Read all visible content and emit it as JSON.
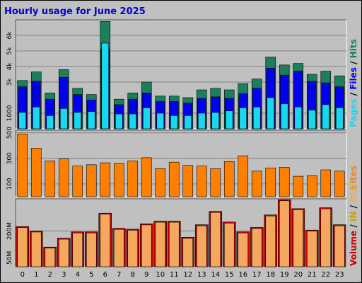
{
  "title": "Hourly usage for June 2025",
  "colors": {
    "background": "#c0c0c0",
    "hits": "#1a7f5a",
    "files": "#0000ee",
    "pages": "#18d8f0",
    "sites": "#ff8000",
    "volume": "#cc0000",
    "in_out": "#f3a85e",
    "in_label": "#c8a000"
  },
  "legend": {
    "top": {
      "pages": "Pages",
      "sep1": " / ",
      "files": "Files",
      "sep2": " / ",
      "hits": "Hits"
    },
    "middle": {
      "sites": "Sites"
    },
    "bottom": {
      "volume": "Volume",
      "sep1": " / ",
      "in": "IN",
      "sep2": " / ",
      "out": "OUT"
    }
  },
  "chart_data": [
    {
      "type": "bar",
      "name": "Hits / Files / Pages",
      "categories": [
        "0",
        "1",
        "2",
        "3",
        "4",
        "5",
        "6",
        "7",
        "8",
        "9",
        "10",
        "11",
        "12",
        "13",
        "14",
        "15",
        "16",
        "17",
        "18",
        "19",
        "20",
        "21",
        "22",
        "23"
      ],
      "series": [
        {
          "name": "Hits",
          "values": [
            3100,
            3650,
            2300,
            3800,
            2600,
            2200,
            6900,
            1900,
            2300,
            3000,
            2100,
            2100,
            2000,
            2500,
            2600,
            2500,
            2900,
            3200,
            4600,
            4100,
            4200,
            3500,
            3700,
            3400
          ]
        },
        {
          "name": "Files",
          "values": [
            2700,
            3050,
            1900,
            3300,
            2200,
            1850,
            5100,
            1550,
            1900,
            2300,
            1750,
            1750,
            1650,
            1950,
            2050,
            1950,
            2250,
            2600,
            3900,
            3450,
            3700,
            3050,
            2950,
            2700
          ]
        },
        {
          "name": "Pages",
          "values": [
            1050,
            1400,
            850,
            1300,
            1050,
            1100,
            5500,
            950,
            950,
            1350,
            1000,
            850,
            850,
            1000,
            1050,
            1150,
            1350,
            1400,
            2000,
            1600,
            1400,
            1200,
            1550,
            1350
          ]
        }
      ],
      "yticks": [
        "6k",
        "5k",
        "4k",
        "3k",
        "1000"
      ],
      "ylim": [
        0,
        7000
      ]
    },
    {
      "type": "bar",
      "name": "Sites",
      "categories": [
        "0",
        "1",
        "2",
        "3",
        "4",
        "5",
        "6",
        "7",
        "8",
        "9",
        "10",
        "11",
        "12",
        "13",
        "14",
        "15",
        "16",
        "17",
        "18",
        "19",
        "20",
        "21",
        "22",
        "23"
      ],
      "series": [
        {
          "name": "Sites",
          "values": [
            490,
            380,
            280,
            295,
            240,
            250,
            265,
            260,
            280,
            305,
            220,
            270,
            245,
            240,
            220,
            275,
            320,
            200,
            225,
            230,
            160,
            165,
            210,
            200
          ]
        }
      ],
      "yticks": [
        "500",
        "300",
        "100"
      ],
      "ylim": [
        0,
        520
      ]
    },
    {
      "type": "bar",
      "name": "Volume",
      "categories": [
        "0",
        "1",
        "2",
        "3",
        "4",
        "5",
        "6",
        "7",
        "8",
        "9",
        "10",
        "11",
        "12",
        "13",
        "14",
        "15",
        "16",
        "17",
        "18",
        "19",
        "20",
        "21",
        "22",
        "23"
      ],
      "series": [
        {
          "name": "Volume",
          "values": [
            225,
            200,
            110,
            160,
            195,
            195,
            300,
            215,
            210,
            240,
            255,
            255,
            165,
            235,
            310,
            250,
            195,
            220,
            290,
            375,
            325,
            205,
            330,
            235
          ]
        },
        {
          "name": "IN / OUT",
          "values": [
            225,
            200,
            110,
            160,
            195,
            195,
            300,
            215,
            210,
            240,
            255,
            255,
            165,
            235,
            310,
            250,
            195,
            220,
            290,
            375,
            325,
            205,
            330,
            235
          ]
        }
      ],
      "yticks": [
        "200M",
        "50M"
      ],
      "ylim": [
        0,
        380
      ]
    }
  ]
}
